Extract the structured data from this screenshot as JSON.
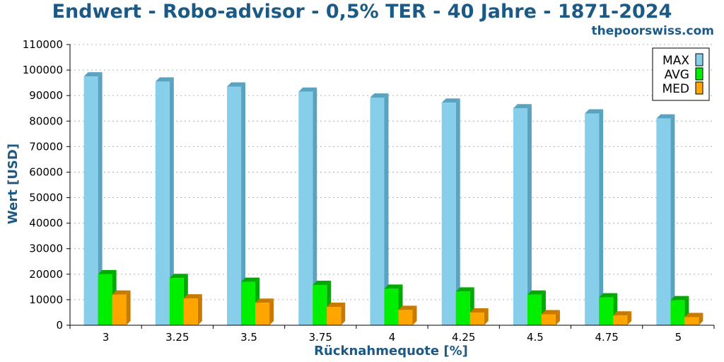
{
  "header": {
    "title": "Endwert - Robo-advisor - 0,5% TER - 40 Jahre - 1871-2024",
    "site": "thepoorswiss.com"
  },
  "colors": {
    "title": "#1c5a85",
    "max": "#87ceeb",
    "max_side": "#5aa3c0",
    "avg": "#00ee00",
    "avg_side": "#00aa00",
    "med": "#ffa500",
    "med_side": "#c87a00",
    "grid": "#b0b0b0"
  },
  "chart_data": {
    "type": "bar",
    "title": "Endwert - Robo-advisor - 0,5% TER - 40 Jahre - 1871-2024",
    "xlabel": "Rücknahmequote [%]",
    "ylabel": "Wert [USD]",
    "categories": [
      "3",
      "3.25",
      "3.5",
      "3.75",
      "4",
      "4.25",
      "4.5",
      "4.75",
      "5"
    ],
    "ylim": [
      0,
      110000
    ],
    "yticks": [
      0,
      10000,
      20000,
      30000,
      40000,
      50000,
      60000,
      70000,
      80000,
      90000,
      100000,
      110000
    ],
    "grid": true,
    "legend_position": "top-right",
    "series": [
      {
        "name": "MAX",
        "values": [
          97500,
          95500,
          93500,
          91500,
          89200,
          87200,
          85000,
          83000,
          81000
        ]
      },
      {
        "name": "AVG",
        "values": [
          20000,
          18500,
          17000,
          15800,
          14300,
          13200,
          12000,
          10900,
          9800
        ]
      },
      {
        "name": "MED",
        "values": [
          12000,
          10500,
          8800,
          7200,
          6000,
          5000,
          4300,
          3800,
          3200
        ]
      }
    ]
  }
}
